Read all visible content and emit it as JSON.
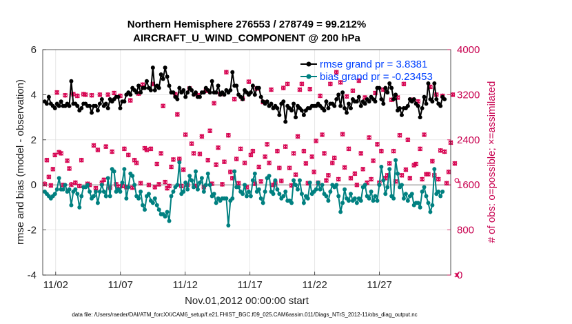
{
  "chart_data": {
    "type": "line",
    "title_line1": "Northern Hemisphere 276553 / 278749 = 99.212%",
    "title_line2": "AIRCRAFT_U_WIND_COMPONENT @ 200 hPa",
    "xlabel": "Nov.01,2012 00:00:00 start",
    "ylabel": "rmse and bias (model - observation)",
    "ylabel_right": "# of obs: o=possible; ×=assimilated",
    "footnote": "data file: /Users/raeder/DAI/ATM_forcXX/CAM6_setup/f.e21.FHIST_BGC.f09_025.CAM6assim.011/Diags_NTrS_2012-11/obs_diag_output.nc",
    "x_day_range": [
      0,
      31.5
    ],
    "x_ticks": [
      {
        "day": 1,
        "label": "11/02"
      },
      {
        "day": 6,
        "label": "11/07"
      },
      {
        "day": 11,
        "label": "11/12"
      },
      {
        "day": 16,
        "label": "11/17"
      },
      {
        "day": 21,
        "label": "11/22"
      },
      {
        "day": 26,
        "label": "11/27"
      }
    ],
    "ylim": [
      -4,
      6
    ],
    "y_ticks": [
      "-4",
      "-2",
      "0",
      "2",
      "4",
      "6"
    ],
    "ylim_right": [
      0,
      4000
    ],
    "y_ticks_right": [
      "0",
      "800",
      "1600",
      "2400",
      "3200",
      "4000"
    ],
    "colors": {
      "rmse": "#000000",
      "bias": "#008080",
      "obs": "#d6004f",
      "zero_line": "#c0c0c0",
      "grid": "#dddddd"
    },
    "series": [
      {
        "name": "rmse",
        "label": "rmse grand pr = 3.8381",
        "values": [
          3.7,
          3.6,
          3.9,
          3.6,
          3.5,
          3.4,
          3.6,
          3.5,
          3.7,
          3.5,
          3.5,
          3.6,
          3.5,
          4.6,
          3.6,
          3.6,
          3.5,
          3.3,
          3.4,
          3.6,
          3.6,
          3.5,
          3.5,
          3.2,
          3.5,
          3.5,
          3.3,
          3.6,
          3.8,
          3.5,
          3.6,
          3.4,
          3.8,
          3.7,
          3.8,
          3.9,
          3.9,
          3.4,
          3.7,
          3.7,
          4.0,
          4.1,
          4.0,
          4.3,
          4.2,
          4.1,
          4.4,
          4.1,
          4.3,
          4.3,
          4.6,
          4.3,
          4.2,
          5.2,
          4.2,
          4.4,
          4.3,
          4.9,
          4.7,
          5.2,
          4.8,
          4.4,
          4.1,
          4.1,
          3.9,
          3.8,
          4.3,
          4.1,
          4.2,
          3.9,
          4.1,
          4.3,
          4.2,
          4.0,
          4.1,
          3.9,
          3.9,
          4.1,
          4.1,
          4.3,
          4.2,
          4.1,
          4.6,
          4.1,
          4.1,
          4.4,
          4.0,
          4.1,
          4.0,
          4.2,
          4.1,
          4.2,
          5.0,
          4.4,
          4.4,
          4.0,
          3.9,
          3.8,
          4.2,
          4.1,
          4.0,
          4.1,
          4.4,
          4.0,
          4.3,
          4.3,
          3.9,
          3.7,
          3.6,
          3.7,
          3.5,
          3.6,
          3.4,
          3.5,
          3.4,
          3.1,
          3.6,
          3.7,
          2.8,
          3.5,
          3.4,
          3.3,
          3.6,
          3.0,
          3.5,
          3.4,
          3.3,
          3.1,
          3.3,
          3.4,
          3.4,
          3.5,
          3.5,
          3.5,
          3.6,
          3.5,
          3.4,
          3.3,
          3.7,
          3.4,
          3.6,
          3.6,
          3.5,
          3.8,
          4.0,
          3.5,
          4.1,
          3.4,
          3.2,
          3.6,
          3.4,
          3.8,
          3.7,
          3.7,
          3.9,
          3.5,
          3.7,
          3.6,
          3.8,
          3.7,
          3.9,
          3.8,
          3.7,
          4.3,
          4.3,
          3.8,
          3.6,
          4.3,
          4.1,
          4.5,
          4.3,
          3.8,
          4.0,
          3.3,
          3.4,
          3.1,
          3.4,
          3.4,
          3.5,
          3.8,
          3.7,
          3.8,
          3.6,
          3.5,
          3.0,
          3.4,
          3.9,
          3.6,
          4.5,
          3.8,
          3.7,
          4.5,
          3.8,
          3.6,
          3.5,
          3.9,
          3.8
        ]
      },
      {
        "name": "bias",
        "label": "bias grand pr = -0.23453",
        "values": [
          -0.3,
          -0.4,
          -0.5,
          -0.6,
          -0.5,
          -0.4,
          -0.2,
          0.3,
          -0.2,
          -0.2,
          0.0,
          -0.3,
          -0.2,
          -0.9,
          -0.3,
          -0.2,
          -0.4,
          -1.0,
          -0.5,
          -0.1,
          -0.1,
          0.0,
          -0.3,
          -0.6,
          -0.5,
          -0.3,
          -0.8,
          -0.3,
          0.0,
          -0.3,
          -0.5,
          0.3,
          -0.5,
          0.7,
          0.6,
          -0.3,
          -0.2,
          -0.3,
          0.1,
          0.7,
          -0.6,
          -0.1,
          0.5,
          0.4,
          0.0,
          -0.5,
          -0.6,
          -0.3,
          -0.9,
          -1.1,
          -0.5,
          -0.4,
          -0.7,
          -0.8,
          -0.6,
          -0.9,
          -1.1,
          -1.3,
          -1.3,
          -1.4,
          -1.2,
          -1.6,
          -0.5,
          -0.3,
          -0.1,
          0.0,
          1.0,
          -0.4,
          -0.3,
          0.1,
          -0.2,
          0.4,
          0.2,
          -0.1,
          0.6,
          -0.2,
          0.1,
          0.3,
          -0.3,
          0.0,
          0.5,
          0.0,
          -0.5,
          -0.4,
          -0.8,
          -0.6,
          -0.7,
          -0.6,
          -0.6,
          -0.6,
          -1.8,
          -0.7,
          -0.6,
          0.6,
          -0.1,
          -0.1,
          -0.3,
          -0.4,
          0.0,
          -0.5,
          -0.3,
          -0.5,
          0.2,
          0.5,
          -0.3,
          -0.2,
          -0.6,
          -0.8,
          -0.3,
          0.3,
          0.4,
          -0.3,
          -0.4,
          0.2,
          -0.2,
          -0.4,
          -0.6,
          -0.5,
          -0.3,
          -0.7,
          -0.7,
          -0.8,
          0.2,
          0.0,
          -0.2,
          0.2,
          -0.4,
          -0.8,
          -0.5,
          -0.6,
          0.1,
          -0.4,
          -0.3,
          -0.2,
          0.1,
          -0.2,
          0.0,
          -0.4,
          -0.5,
          -0.7,
          -0.3,
          0.0,
          -0.1,
          0.0,
          -0.5,
          -1.2,
          -0.8,
          -0.2,
          -0.6,
          -0.7,
          -0.4,
          -0.7,
          -0.6,
          -0.8,
          -0.6,
          -0.7,
          -0.1,
          0.0,
          -0.5,
          -0.6,
          -0.3,
          -0.7,
          -0.5,
          -0.7,
          0.0,
          0.8,
          0.2,
          -0.4,
          -0.1,
          0.7,
          -0.5,
          -0.6,
          1.1,
          0.5,
          -0.1,
          0.0,
          -0.6,
          -0.4,
          -0.7,
          -0.5,
          -0.4,
          -0.9,
          -0.8,
          -0.8,
          -1.0,
          -0.3,
          -0.1,
          -0.5,
          -0.8,
          -1.2,
          -0.9,
          0.7,
          -0.4,
          -0.3,
          -0.5,
          -0.3
        ]
      },
      {
        "name": "obs_possible",
        "axis": "right",
        "values": [
          1620,
          2040,
          1740,
          1590,
          1880,
          2130,
          3240,
          2180,
          2160,
          1600,
          3190,
          2030,
          1890,
          1610,
          3210,
          1640,
          3180,
          1580,
          2040,
          3210,
          3200,
          1620,
          1600,
          3190,
          2300,
          1540,
          2220,
          3200,
          1640,
          1690,
          2280,
          3200,
          1550,
          2190,
          3230,
          1610,
          1570,
          3180,
          1580,
          2240,
          1560,
          2130,
          3100,
          1550,
          2040,
          1990,
          3220,
          1630,
          3380,
          2250,
          2220,
          1600,
          2240,
          3390,
          1560,
          1970,
          1610,
          2160,
          3000,
          1650,
          1540,
          1580,
          1920,
          2050,
          3210,
          2850,
          2060,
          1580,
          1870,
          2490,
          1600,
          3310,
          2330,
          2160,
          1580,
          3190,
          2150,
          2460,
          1560,
          3270,
          2040,
          2560,
          1620,
          3050,
          1960,
          2260,
          3210,
          1610,
          2010,
          3600,
          2480,
          1830,
          1720,
          3120,
          2060,
          1630,
          2240,
          3130,
          1990,
          1560,
          3430,
          2130,
          2200,
          1620,
          3310,
          1920,
          1660,
          3070,
          2100,
          2320,
          1990,
          3290,
          1600,
          1630,
          2200,
          1900,
          1670,
          3320,
          2280,
          3390,
          1900,
          1590,
          2160,
          1780,
          2460,
          3290,
          3390,
          2200,
          1980,
          1630,
          3300,
          2100,
          1830,
          2380,
          1640,
          3180,
          2490,
          2160,
          1680,
          1770,
          3390,
          1990,
          2080,
          3600,
          1700,
          3420,
          2500,
          1910,
          3170,
          2240,
          1720,
          3270,
          1800,
          1600,
          3450,
          2160,
          1880,
          3150,
          1640,
          2440,
          1700,
          2030,
          3230,
          2320,
          1640,
          2200,
          3290,
          1720,
          1770,
          1980,
          3110,
          2200,
          1660,
          3150,
          2480,
          1770,
          3390,
          1870,
          2400,
          1720,
          3110,
          1950,
          1970,
          3080,
          2240,
          1700,
          2490,
          1790,
          1790,
          3340,
          2020,
          1770,
          3200,
          1700,
          2210,
          3180,
          2190,
          1630,
          1830,
          2350,
          3200,
          1980,
          1680
        ]
      },
      {
        "name": "obs_assimilated",
        "axis": "right",
        "values": [
          1610,
          2040,
          1740,
          1590,
          1880,
          2130,
          3240,
          2180,
          2160,
          1600,
          3190,
          2030,
          1890,
          1600,
          3210,
          1640,
          3180,
          1580,
          2040,
          3210,
          3200,
          1620,
          1600,
          3190,
          2300,
          1540,
          2220,
          3200,
          1640,
          1690,
          2280,
          3200,
          1550,
          2190,
          3230,
          1610,
          1570,
          3180,
          1580,
          2240,
          1560,
          2130,
          3100,
          1550,
          2040,
          1990,
          3220,
          1630,
          3380,
          2250,
          2220,
          1600,
          2240,
          3390,
          1560,
          1970,
          1610,
          2160,
          3000,
          1650,
          1540,
          1580,
          1920,
          2050,
          3210,
          2850,
          2060,
          1580,
          1870,
          2490,
          1600,
          3310,
          2330,
          2160,
          1580,
          3190,
          2150,
          2460,
          1560,
          3270,
          2040,
          2560,
          1620,
          3050,
          1960,
          2260,
          3210,
          1610,
          2010,
          3600,
          2480,
          1830,
          1720,
          3120,
          2060,
          1630,
          2240,
          3130,
          1990,
          1560,
          3430,
          2130,
          2200,
          1620,
          3310,
          1920,
          1660,
          3070,
          2100,
          2320,
          1990,
          3290,
          1600,
          1630,
          2200,
          1900,
          1670,
          3320,
          2280,
          3390,
          1900,
          1590,
          2160,
          1780,
          2460,
          3290,
          3390,
          2200,
          1980,
          1630,
          3300,
          2100,
          1830,
          2380,
          1640,
          3180,
          2490,
          2160,
          1680,
          1770,
          3390,
          1990,
          2080,
          3600,
          1700,
          3420,
          2500,
          1910,
          3170,
          2240,
          1720,
          3270,
          1800,
          1600,
          3450,
          2160,
          1880,
          3150,
          1640,
          2440,
          1700,
          2030,
          3230,
          2320,
          1640,
          2200,
          3290,
          1720,
          1770,
          1980,
          3110,
          2200,
          1660,
          3150,
          2480,
          1770,
          3390,
          1870,
          2400,
          1720,
          3110,
          1950,
          1970,
          3080,
          2240,
          1700,
          2490,
          1790,
          1790,
          3340,
          2020,
          1770,
          3200,
          1700,
          2210,
          3180,
          2190,
          1630,
          1830,
          2350,
          3200,
          1980,
          0
        ]
      }
    ]
  }
}
